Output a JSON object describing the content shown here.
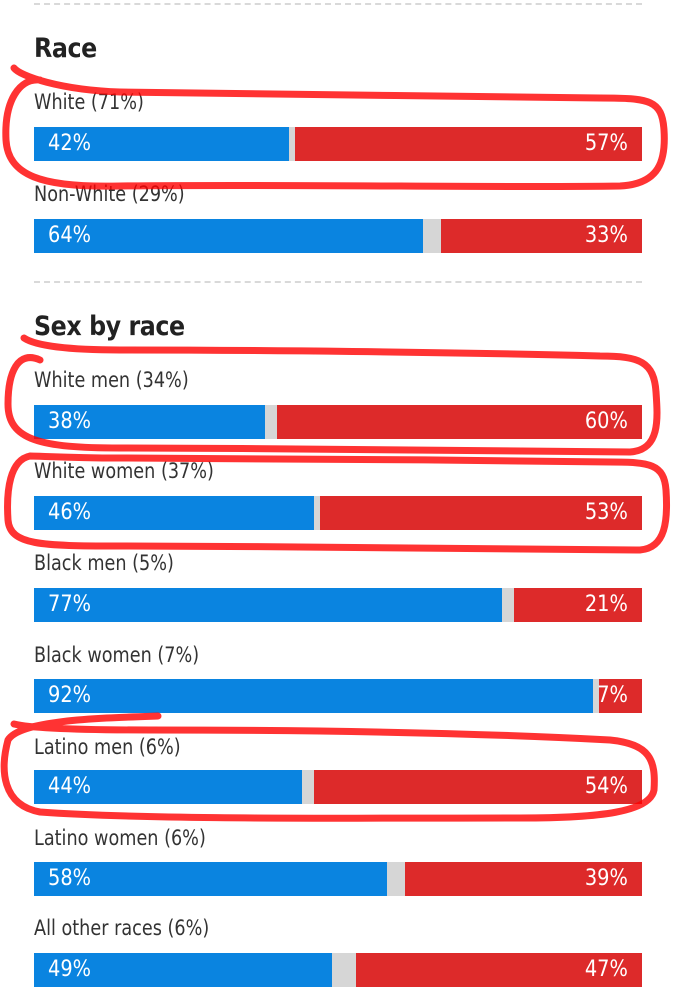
{
  "colors": {
    "democrat": "#0a84e0",
    "republican": "#dd2a2a",
    "other": "#d6d6d6",
    "marker": "#ff0000"
  },
  "chart_data": [
    {
      "type": "bar",
      "title": "Race",
      "orientation": "horizontal-stacked",
      "xlim": [
        0,
        100
      ],
      "rows": [
        {
          "label": "White (71%)",
          "dem": 42,
          "rep": 57,
          "dem_label": "42%",
          "rep_label": "57%",
          "circled": true
        },
        {
          "label": "Non-White (29%)",
          "dem": 64,
          "rep": 33,
          "dem_label": "64%",
          "rep_label": "33%",
          "circled": false
        }
      ]
    },
    {
      "type": "bar",
      "title": "Sex by race",
      "orientation": "horizontal-stacked",
      "xlim": [
        0,
        100
      ],
      "rows": [
        {
          "label": "White men (34%)",
          "dem": 38,
          "rep": 60,
          "dem_label": "38%",
          "rep_label": "60%",
          "circled": true
        },
        {
          "label": "White women (37%)",
          "dem": 46,
          "rep": 53,
          "dem_label": "46%",
          "rep_label": "53%",
          "circled": true
        },
        {
          "label": "Black men (5%)",
          "dem": 77,
          "rep": 21,
          "dem_label": "77%",
          "rep_label": "21%",
          "circled": false
        },
        {
          "label": "Black women (7%)",
          "dem": 92,
          "rep": 7,
          "dem_label": "92%",
          "rep_label": "7%",
          "circled": false
        },
        {
          "label": "Latino men (6%)",
          "dem": 44,
          "rep": 54,
          "dem_label": "44%",
          "rep_label": "54%",
          "circled": true
        },
        {
          "label": "Latino women (6%)",
          "dem": 58,
          "rep": 39,
          "dem_label": "58%",
          "rep_label": "39%",
          "circled": false
        },
        {
          "label": "All other races (6%)",
          "dem": 49,
          "rep": 47,
          "dem_label": "49%",
          "rep_label": "47%",
          "circled": false
        }
      ]
    }
  ]
}
